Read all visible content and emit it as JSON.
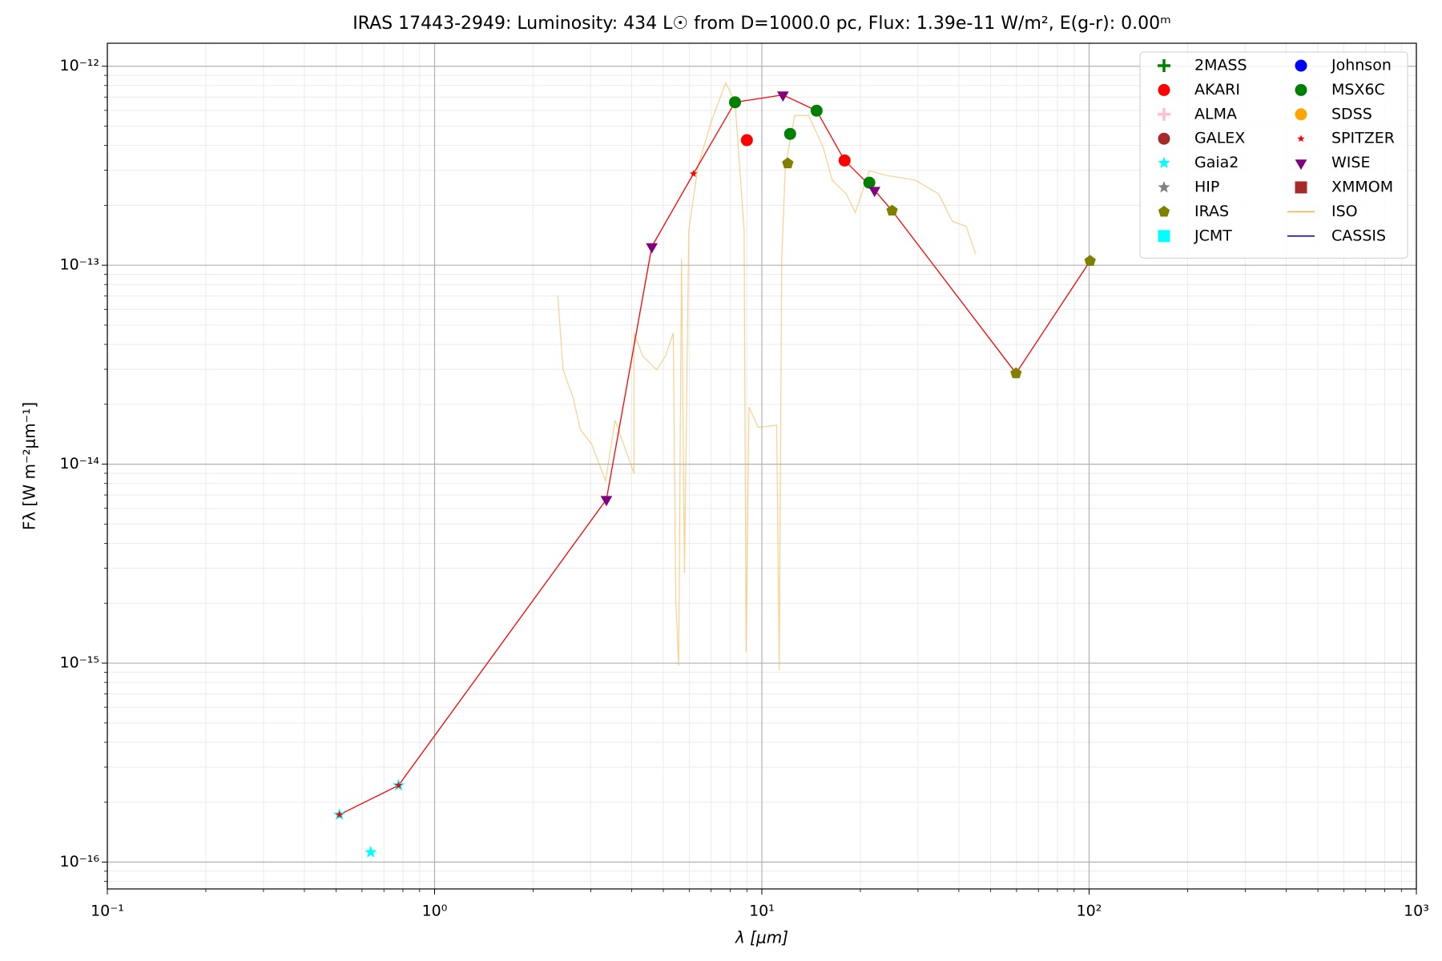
{
  "chart_data": {
    "type": "scatter",
    "title": "IRAS 17443-2949:  Luminosity: 434 L☉ from D=1000.0 pc, Flux: 1.39e-11 W/m², E(g-r): 0.00ᵐ",
    "x_label": "λ [μm]",
    "y_label": "Fλ [W m⁻²μm⁻¹]",
    "log_x": true,
    "log_y": true,
    "grid": true,
    "legend": "upper right",
    "xlim": [
      0.1,
      1000
    ],
    "ylim": [
      7.33e-17,
      1.305e-12
    ],
    "xticks": [
      {
        "value": 0.1,
        "label": "10⁻¹"
      },
      {
        "value": 1,
        "label": "10⁰"
      },
      {
        "value": 10,
        "label": "10¹"
      },
      {
        "value": 100,
        "label": "10²"
      },
      {
        "value": 1000,
        "label": "10³"
      }
    ],
    "yticks": [
      {
        "value": 1e-16,
        "label": "10⁻¹⁶"
      },
      {
        "value": 1e-15,
        "label": "10⁻¹⁵"
      },
      {
        "value": 1e-14,
        "label": "10⁻¹⁴"
      },
      {
        "value": 1e-13,
        "label": "10⁻¹³"
      },
      {
        "value": 1e-12,
        "label": "10⁻¹²"
      }
    ],
    "sed_line": {
      "color": "#ff0000",
      "x": [
        0.512,
        0.776,
        3.35,
        4.61,
        6.18,
        8.28,
        11.6,
        14.7,
        17.9,
        22.1,
        25.0,
        59.8,
        100.7
      ],
      "values": [
        1.73e-16,
        2.43e-16,
        6.65e-15,
        1.24e-13,
        2.88e-13,
        6.59e-13,
        7.18e-13,
        5.98e-13,
        3.36e-13,
        2.38e-13,
        1.88e-13,
        2.86e-14,
        1.05e-13
      ]
    },
    "series": [
      {
        "name": "2MASS",
        "color": "#008000",
        "marker": "plus",
        "x": [],
        "values": []
      },
      {
        "name": "AKARI",
        "color": "#ff0000",
        "marker": "circle",
        "x": [
          9.0,
          17.9
        ],
        "values": [
          4.25e-13,
          3.36e-13
        ]
      },
      {
        "name": "ALMA",
        "color": "#ffc0cb",
        "marker": "plus",
        "x": [],
        "values": []
      },
      {
        "name": "GALEX",
        "color": "#a52a2a",
        "marker": "circle",
        "x": [],
        "values": []
      },
      {
        "name": "Gaia2",
        "color": "#00ffff",
        "marker": "star",
        "x": [
          0.512,
          0.638,
          0.776
        ],
        "values": [
          1.73e-16,
          1.12e-16,
          2.43e-16
        ]
      },
      {
        "name": "HIP",
        "color": "#808080",
        "marker": "star",
        "x": [],
        "values": []
      },
      {
        "name": "IRAS",
        "color": "#808000",
        "marker": "pentagon",
        "x": [
          12.0,
          25.0,
          59.8,
          100.7
        ],
        "values": [
          3.25e-13,
          1.88e-13,
          2.86e-14,
          1.05e-13
        ]
      },
      {
        "name": "JCMT",
        "color": "#00ffff",
        "marker": "square",
        "x": [],
        "values": []
      },
      {
        "name": "Johnson",
        "color": "#0000ff",
        "marker": "circle",
        "x": [],
        "values": []
      },
      {
        "name": "MSX6C",
        "color": "#008000",
        "marker": "circle",
        "x": [
          8.28,
          12.2,
          14.7,
          21.3
        ],
        "values": [
          6.59e-13,
          4.57e-13,
          5.98e-13,
          2.6e-13
        ]
      },
      {
        "name": "SDSS",
        "color": "#ffa500",
        "marker": "circle",
        "x": [],
        "values": []
      },
      {
        "name": "SPITZER",
        "color": "#ff0000",
        "marker": "smallstar",
        "x": [
          0.512,
          0.776,
          6.18
        ],
        "values": [
          1.73e-16,
          2.43e-16,
          2.88e-13
        ]
      },
      {
        "name": "WISE",
        "color": "#800080",
        "marker": "triangle-down",
        "x": [
          3.35,
          4.61,
          11.6,
          22.1
        ],
        "values": [
          6.65e-15,
          1.24e-13,
          7.18e-13,
          2.38e-13
        ]
      },
      {
        "name": "XMMOM",
        "color": "#a52a2a",
        "marker": "square",
        "x": [],
        "values": []
      },
      {
        "name": "ISO",
        "color": "#f5b041",
        "marker": "line",
        "x": [
          2.38,
          2.47,
          2.65,
          2.79,
          3.02,
          3.33,
          3.56,
          4.07,
          4.07,
          4.32,
          4.77,
          5.08,
          5.36,
          5.46,
          5.57,
          5.68,
          5.8,
          5.98,
          6.38,
          7.03,
          7.76,
          8.28,
          8.83,
          8.95,
          9.13,
          9.74,
          11.1,
          11.3,
          11.5,
          11.8,
          12.6,
          13.9,
          15.4,
          16.4,
          18.1,
          19.3,
          21.3,
          24.2,
          29.4,
          34.7,
          38.2,
          42.1,
          45.0
        ],
        "values": [
          7.03e-14,
          2.98e-14,
          2.16e-14,
          1.49e-14,
          1.26e-14,
          8.25e-15,
          1.66e-14,
          8.97e-15,
          4.57e-14,
          3.5e-14,
          2.98e-14,
          3.5e-14,
          4.57e-14,
          2.05e-15,
          9.7e-16,
          1.08e-13,
          2.83e-15,
          1.49e-13,
          3.15e-13,
          5.37e-13,
          8.25e-13,
          6.6e-13,
          1.49e-13,
          1.14e-15,
          1.94e-14,
          1.53e-14,
          1.57e-14,
          9.2e-16,
          1.08e-13,
          3.15e-13,
          5.66e-13,
          5.66e-13,
          3.9e-13,
          2.68e-13,
          2.28e-13,
          1.84e-13,
          2.98e-13,
          2.82e-13,
          2.68e-13,
          2.28e-13,
          1.66e-13,
          1.57e-13,
          1.14e-13
        ]
      },
      {
        "name": "CASSIS",
        "color": "#00008b",
        "marker": "line",
        "x": [],
        "values": []
      }
    ]
  }
}
